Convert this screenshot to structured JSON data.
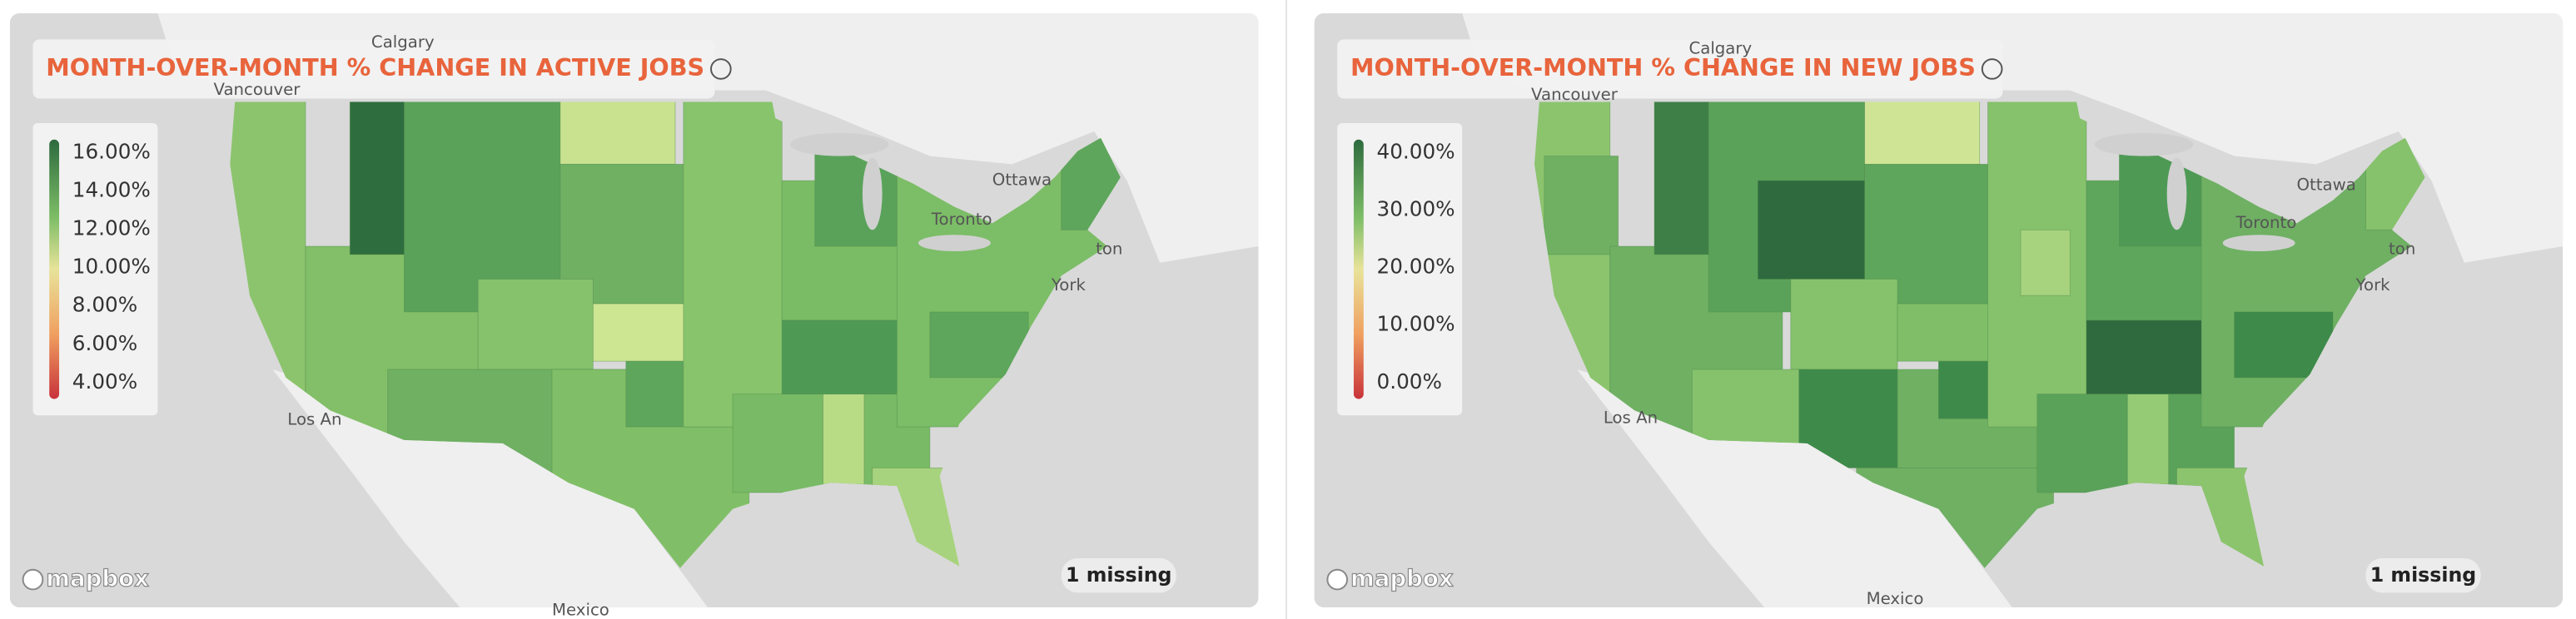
{
  "attribution": "mapbox",
  "panels": [
    {
      "title": "MONTH-OVER-MONTH % CHANGE IN ACTIVE JOBS",
      "legend_ticks": [
        "16.00%",
        "14.00%",
        "12.00%",
        "10.00%",
        "8.00%",
        "6.00%",
        "4.00%"
      ],
      "missing": "1 missing",
      "places": [
        "Calgary",
        "Vancouver",
        "Ottawa",
        "Toronto",
        "Los An",
        "York",
        "ton",
        "Mexico"
      ]
    },
    {
      "title": "MONTH-OVER-MONTH % CHANGE IN NEW JOBS",
      "legend_ticks": [
        "40.00%",
        "30.00%",
        "20.00%",
        "10.00%",
        "0.00%"
      ],
      "missing": "1 missing",
      "places": [
        "Calgary",
        "Vancouver",
        "Ottawa",
        "Toronto",
        "Los An",
        "York",
        "ton",
        "Mexico"
      ]
    }
  ]
}
